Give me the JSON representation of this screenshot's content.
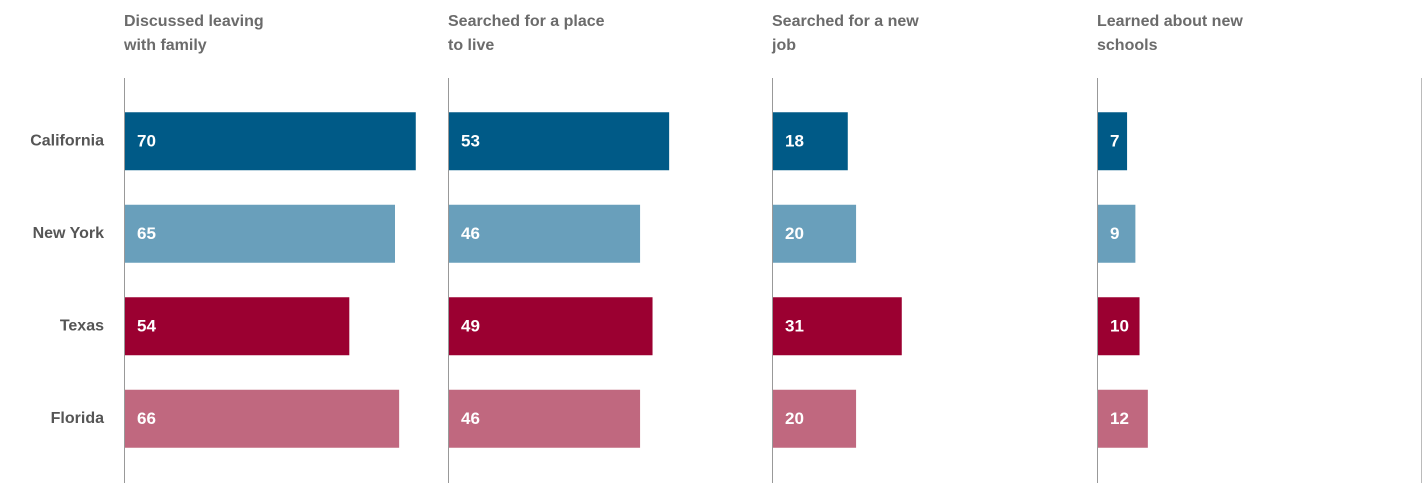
{
  "chart_data": {
    "type": "bar",
    "orientation": "horizontal",
    "layout": "small-multiples",
    "categories": [
      "California",
      "New York",
      "Texas",
      "Florida"
    ],
    "colors": [
      "#005a87",
      "#699fbb",
      "#9b0031",
      "#c0687f"
    ],
    "xlim": [
      0,
      78
    ],
    "series": [
      {
        "name": "Discussed leaving with family",
        "values": [
          70,
          65,
          54,
          66
        ]
      },
      {
        "name": "Searched for a place to live",
        "values": [
          53,
          46,
          49,
          46
        ]
      },
      {
        "name": "Searched for a new job",
        "values": [
          18,
          20,
          31,
          20
        ]
      },
      {
        "name": "Learned about new schools",
        "values": [
          7,
          9,
          10,
          12
        ]
      }
    ]
  }
}
